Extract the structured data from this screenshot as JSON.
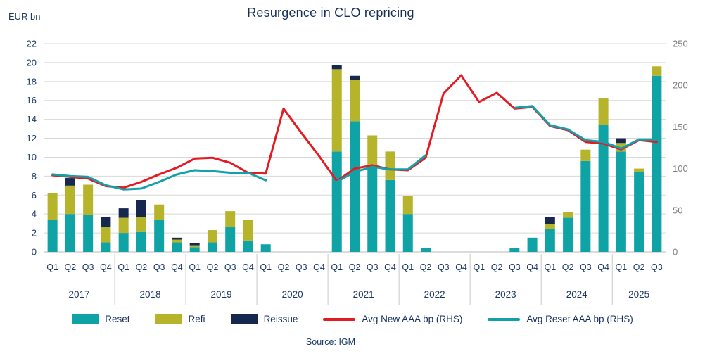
{
  "title": "Resurgence in CLO repricing",
  "axis_left_unit": "EUR bn",
  "source": "Source: IGM",
  "colors": {
    "reset": "#0fa3a6",
    "refi": "#b5b42a",
    "reissue": "#16284e",
    "avg_new": "#e31b23",
    "avg_reset": "#14a0a8",
    "title_text": "#16305e",
    "axis_text": "#1d3a66",
    "right_axis_text": "#808080",
    "grid": "#d8d8d8",
    "baseline": "#b9b9b9",
    "separator": "#c9c9c9"
  },
  "chart_data": {
    "type": "combo-stacked-bar-line",
    "ylim_left": [
      0,
      22
    ],
    "ylim_right": [
      0,
      250
    ],
    "yticks_left": [
      0,
      2,
      4,
      6,
      8,
      10,
      12,
      14,
      16,
      18,
      20,
      22
    ],
    "yticks_right": [
      0,
      50,
      100,
      150,
      200,
      250
    ],
    "groups": [
      {
        "year": "2017",
        "quarters": [
          "Q1",
          "Q2",
          "Q3",
          "Q4"
        ]
      },
      {
        "year": "2018",
        "quarters": [
          "Q1",
          "Q2",
          "Q3",
          "Q4"
        ]
      },
      {
        "year": "2019",
        "quarters": [
          "Q1",
          "Q2",
          "Q3",
          "Q4"
        ]
      },
      {
        "year": "2020",
        "quarters": [
          "Q1",
          "Q2",
          "Q3",
          "Q4"
        ]
      },
      {
        "year": "2021",
        "quarters": [
          "Q1",
          "Q2",
          "Q3",
          "Q4"
        ]
      },
      {
        "year": "2022",
        "quarters": [
          "Q1",
          "Q2",
          "Q3",
          "Q4"
        ]
      },
      {
        "year": "2023",
        "quarters": [
          "Q1",
          "Q2",
          "Q3",
          "Q4"
        ]
      },
      {
        "year": "2024",
        "quarters": [
          "Q1",
          "Q2",
          "Q3",
          "Q4"
        ]
      },
      {
        "year": "2025",
        "quarters": [
          "Q1",
          "Q2",
          "Q3"
        ]
      }
    ],
    "bar_series": [
      {
        "name": "Reset",
        "key": "reset",
        "axis": "left",
        "values": [
          3.4,
          4.0,
          3.9,
          1.0,
          2.0,
          2.1,
          3.4,
          1.0,
          0.5,
          1.0,
          2.6,
          1.2,
          0.8,
          0,
          0,
          0,
          10.6,
          13.8,
          9.2,
          7.6,
          4.0,
          0.4,
          0,
          0,
          0,
          0,
          0.4,
          1.5,
          2.4,
          3.6,
          9.6,
          13.4,
          10.6,
          8.4,
          18.6
        ]
      },
      {
        "name": "Refi",
        "key": "refi",
        "axis": "left",
        "values": [
          2.8,
          3.0,
          3.2,
          1.6,
          1.6,
          1.6,
          1.6,
          0.3,
          0.2,
          1.3,
          1.7,
          2.2,
          0,
          0,
          0,
          0,
          8.7,
          4.4,
          3.1,
          3.0,
          1.9,
          0,
          0,
          0,
          0,
          0,
          0,
          0,
          0.5,
          0.6,
          1.2,
          2.8,
          0.9,
          0.4,
          1.0
        ]
      },
      {
        "name": "Reissue",
        "key": "reissue",
        "axis": "left",
        "values": [
          0,
          0.8,
          0,
          1.1,
          1.0,
          1.8,
          0,
          0.2,
          0.2,
          0,
          0,
          0,
          0,
          0,
          0,
          0,
          0.4,
          0.4,
          0,
          0,
          0,
          0,
          0,
          0,
          0,
          0,
          0,
          0,
          0.8,
          0,
          0,
          0,
          0.5,
          0,
          0
        ]
      }
    ],
    "line_series": [
      {
        "name": "Avg New AAA bp (RHS)",
        "key": "avg_new",
        "axis": "right",
        "values": [
          92,
          90,
          88,
          79,
          77,
          84,
          93,
          101,
          112,
          113,
          107,
          95,
          94,
          172,
          143,
          115,
          85,
          100,
          104,
          99,
          98,
          113,
          190,
          212,
          180,
          191,
          172,
          174,
          151,
          146,
          132,
          130,
          123,
          134,
          132
        ]
      },
      {
        "name": "Avg Reset AAA bp (RHS)",
        "key": "avg_reset",
        "axis": "right",
        "values": [
          93,
          91,
          90,
          80,
          75,
          76,
          84,
          93,
          98,
          97,
          95,
          95,
          86,
          null,
          null,
          null,
          84,
          96,
          102,
          99,
          99,
          116,
          null,
          null,
          null,
          null,
          173,
          175,
          152,
          147,
          134,
          132,
          124,
          135,
          135
        ]
      }
    ]
  },
  "legend": [
    {
      "label": "Reset"
    },
    {
      "label": "Refi"
    },
    {
      "label": "Reissue"
    },
    {
      "label": "Avg New AAA bp (RHS)"
    },
    {
      "label": "Avg Reset AAA bp (RHS)"
    }
  ]
}
